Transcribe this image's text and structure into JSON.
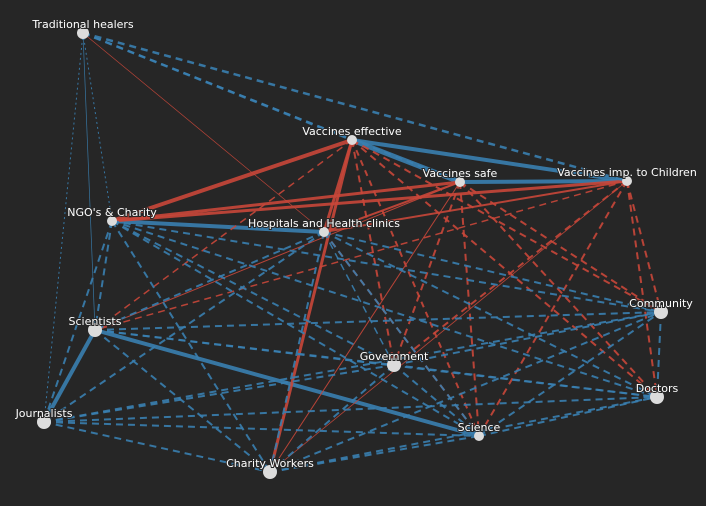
{
  "nodes": [
    {
      "label": "Traditional healers"
    },
    {
      "label": "Vaccines effective"
    },
    {
      "label": "Vaccines safe"
    },
    {
      "label": "Vaccines imp. to Children"
    },
    {
      "label": "NGO's & Charity"
    },
    {
      "label": "Hospitals and Health clinics"
    },
    {
      "label": "Community"
    },
    {
      "label": "Scientists"
    },
    {
      "label": "Government"
    },
    {
      "label": "Doctors"
    },
    {
      "label": "Journalists"
    },
    {
      "label": "Science"
    },
    {
      "label": "Charity Workers"
    }
  ]
}
